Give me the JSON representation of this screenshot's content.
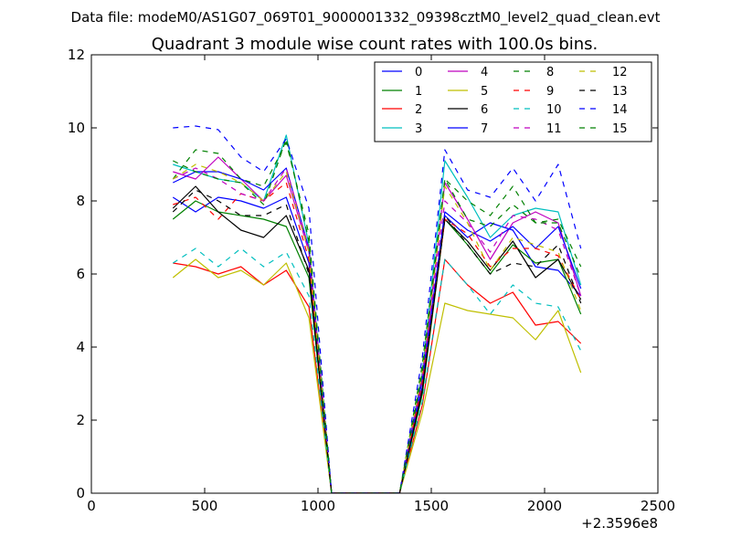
{
  "chart_data": {
    "type": "line",
    "suptitle": "Data file: modeM0/AS1G07_069T01_9000001332_09398cztM0_level2_quad_clean.evt",
    "title": "Quadrant 3 module wise count rates with 100.0s bins.",
    "xlabel": "",
    "ylabel": "",
    "offset_label": "+2.3596e8",
    "xlim": [
      0,
      2500
    ],
    "ylim": [
      0,
      12
    ],
    "xticks": [
      0,
      500,
      1000,
      1500,
      2000,
      2500
    ],
    "yticks": [
      0,
      2,
      4,
      6,
      8,
      10,
      12
    ],
    "xtick_labels": [
      "0",
      "500",
      "1000",
      "1500",
      "2000",
      "2500"
    ],
    "ytick_labels": [
      "0",
      "2",
      "4",
      "6",
      "8",
      "10",
      "12"
    ],
    "x": [
      360,
      460,
      560,
      660,
      760,
      860,
      960,
      1060,
      1160,
      1260,
      1360,
      1460,
      1560,
      1660,
      1760,
      1860,
      1960,
      2060,
      2160
    ],
    "legend_position": "top-right",
    "series": [
      {
        "name": "0",
        "color": "#0000ff",
        "dash": "solid",
        "values": [
          8.1,
          7.7,
          8.1,
          8.0,
          7.8,
          8.1,
          6.3,
          0,
          0,
          0,
          0,
          2.9,
          7.6,
          7.0,
          7.4,
          7.2,
          6.2,
          6.1,
          5.4
        ]
      },
      {
        "name": "1",
        "color": "#008000",
        "dash": "solid",
        "values": [
          7.5,
          8.0,
          7.7,
          7.6,
          7.5,
          7.3,
          5.9,
          0,
          0,
          0,
          0,
          2.7,
          7.5,
          6.8,
          6.0,
          6.8,
          6.3,
          6.4,
          4.9
        ]
      },
      {
        "name": "2",
        "color": "#ff0000",
        "dash": "solid",
        "values": [
          6.3,
          6.2,
          6.0,
          6.2,
          5.7,
          6.1,
          5.1,
          0,
          0,
          0,
          0,
          2.4,
          6.4,
          5.7,
          5.2,
          5.5,
          4.6,
          4.7,
          4.1
        ]
      },
      {
        "name": "3",
        "color": "#00bfbf",
        "dash": "solid",
        "values": [
          9.0,
          8.8,
          8.6,
          8.5,
          8.0,
          9.8,
          6.8,
          0,
          0,
          0,
          0,
          3.3,
          9.1,
          8.1,
          7.0,
          7.6,
          7.8,
          7.7,
          5.7
        ]
      },
      {
        "name": "4",
        "color": "#bf00bf",
        "dash": "solid",
        "values": [
          8.8,
          8.6,
          9.2,
          8.6,
          8.0,
          8.7,
          6.6,
          0,
          0,
          0,
          0,
          3.1,
          8.5,
          7.5,
          6.4,
          7.4,
          7.7,
          7.4,
          5.4
        ]
      },
      {
        "name": "5",
        "color": "#bfbf00",
        "dash": "solid",
        "values": [
          5.9,
          6.4,
          5.9,
          6.1,
          5.7,
          6.3,
          4.8,
          0,
          0,
          0,
          0,
          2.2,
          5.2,
          5.0,
          4.9,
          4.8,
          4.2,
          5.0,
          3.3
        ]
      },
      {
        "name": "6",
        "color": "#000000",
        "dash": "solid",
        "values": [
          7.8,
          8.4,
          7.7,
          7.2,
          7.0,
          7.6,
          6.1,
          0,
          0,
          0,
          0,
          2.8,
          7.5,
          6.9,
          6.1,
          6.9,
          5.9,
          6.4,
          5.3
        ]
      },
      {
        "name": "7",
        "color": "#0000ff",
        "dash": "solid",
        "values": [
          8.5,
          8.8,
          8.8,
          8.6,
          8.3,
          8.9,
          6.7,
          0,
          0,
          0,
          0,
          3.1,
          7.7,
          7.2,
          6.9,
          7.3,
          6.7,
          7.3,
          5.6
        ]
      },
      {
        "name": "8",
        "color": "#008000",
        "dash": "dashed",
        "values": [
          8.6,
          9.4,
          9.3,
          8.6,
          8.4,
          9.6,
          7.1,
          0,
          0,
          0,
          0,
          3.5,
          8.6,
          8.0,
          7.6,
          8.4,
          7.4,
          7.5,
          6.2
        ]
      },
      {
        "name": "9",
        "color": "#ff0000",
        "dash": "dashed",
        "values": [
          7.9,
          8.1,
          7.5,
          8.2,
          8.0,
          8.5,
          6.4,
          0,
          0,
          0,
          0,
          3.0,
          7.5,
          7.1,
          6.2,
          6.7,
          6.7,
          6.5,
          5.3
        ]
      },
      {
        "name": "10",
        "color": "#00bfbf",
        "dash": "dashed",
        "values": [
          6.3,
          6.7,
          6.2,
          6.7,
          6.2,
          6.6,
          5.4,
          0,
          0,
          0,
          0,
          2.5,
          6.4,
          5.7,
          4.9,
          5.7,
          5.2,
          5.1,
          3.9
        ]
      },
      {
        "name": "11",
        "color": "#bf00bf",
        "dash": "dashed",
        "values": [
          8.6,
          8.9,
          8.6,
          8.2,
          8.0,
          8.9,
          6.7,
          0,
          0,
          0,
          0,
          3.2,
          8.0,
          7.4,
          6.6,
          7.6,
          7.5,
          7.2,
          5.4
        ]
      },
      {
        "name": "12",
        "color": "#bfbf00",
        "dash": "dashed",
        "values": [
          8.6,
          9.0,
          8.8,
          8.5,
          8.0,
          8.8,
          6.6,
          0,
          0,
          0,
          0,
          3.3,
          8.4,
          7.4,
          6.1,
          7.0,
          6.8,
          6.6,
          5.0
        ]
      },
      {
        "name": "13",
        "color": "#000000",
        "dash": "dashed",
        "values": [
          7.7,
          8.3,
          8.0,
          7.6,
          7.6,
          7.9,
          6.0,
          0,
          0,
          0,
          0,
          2.8,
          7.6,
          6.8,
          6.0,
          6.3,
          6.2,
          6.8,
          5.2
        ]
      },
      {
        "name": "14",
        "color": "#0000ff",
        "dash": "dashed",
        "values": [
          10.0,
          10.05,
          9.95,
          9.2,
          8.8,
          9.7,
          7.8,
          0,
          0,
          0,
          0,
          3.7,
          9.4,
          8.3,
          8.1,
          8.9,
          8.0,
          9.0,
          6.7
        ]
      },
      {
        "name": "15",
        "color": "#008000",
        "dash": "dashed",
        "values": [
          9.1,
          8.8,
          8.6,
          8.5,
          7.9,
          9.7,
          6.9,
          0,
          0,
          0,
          0,
          3.3,
          8.6,
          7.5,
          7.3,
          7.9,
          7.4,
          7.4,
          5.9
        ]
      }
    ]
  }
}
